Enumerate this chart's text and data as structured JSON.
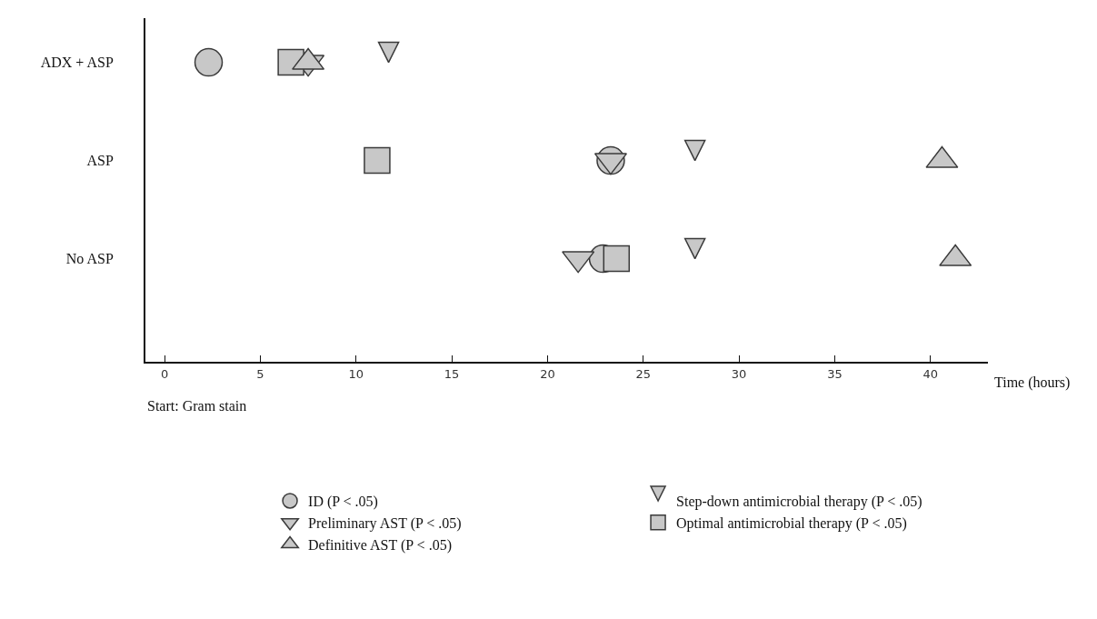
{
  "chart_data": {
    "type": "scatter",
    "orientation": "horizontal",
    "xlabel": "Time (hours)",
    "categories": [
      "ADX + ASP",
      "ASP",
      "No ASP"
    ],
    "xlim": [
      -1,
      43
    ],
    "xticks": [
      0,
      5,
      10,
      15,
      20,
      25,
      30,
      35,
      40
    ],
    "grid": false,
    "legend": "bottom",
    "annotations": [
      "Start: Gram stain"
    ],
    "series": [
      {
        "name": "ID (P < .05)",
        "marker": "circle",
        "color": "#c8c8c8",
        "values": [
          2.3,
          23.3,
          22.9
        ]
      },
      {
        "name": "Step-down antimicrobial therapy (P < .05)",
        "marker": "triangle",
        "color": "#c8c8c8",
        "values": [
          11.7,
          27.7,
          27.7
        ]
      },
      {
        "name": "Preliminary AST (P < .05)",
        "marker": "triangle-down",
        "color": "#c8c8c8",
        "values": [
          7.5,
          23.3,
          21.6
        ]
      },
      {
        "name": "Optimal antimicrobial therapy (P < .05)",
        "marker": "square",
        "color": "#c8c8c8",
        "values": [
          6.6,
          11.1,
          23.6
        ]
      },
      {
        "name": "Definitive AST (P < .05)",
        "marker": "triangle-up",
        "color": "#c8c8c8",
        "values": [
          7.5,
          40.6,
          41.3
        ]
      }
    ]
  }
}
